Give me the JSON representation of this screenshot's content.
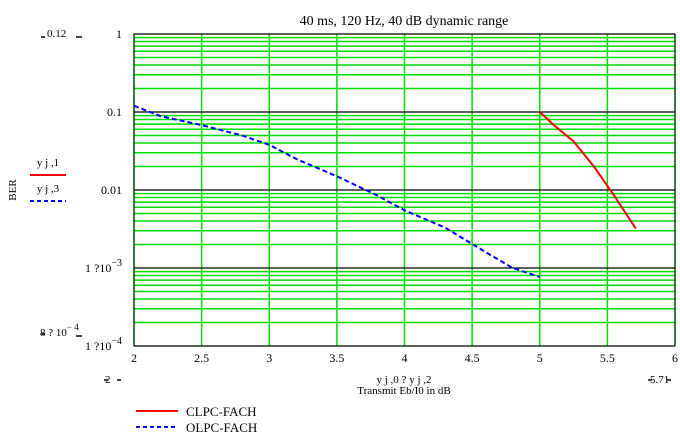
{
  "chart_data": {
    "type": "line",
    "title": "40 ms, 120 Hz, 40 dB dynamic range",
    "xlabel": "Transmit Eb/I0 in dB",
    "xlabel_expr": "y j ,0 ? y j ,2",
    "ylabel": "BER",
    "xlim": [
      2,
      6
    ],
    "ylim": [
      0.0001,
      1
    ],
    "yscale": "log",
    "grid": true,
    "grid_color": "#00dd00",
    "x_ticks": [
      "2",
      "2.5",
      "3",
      "3.5",
      "4",
      "4.5",
      "5",
      "5.5",
      "6"
    ],
    "y_ticks": [
      {
        "value": 1,
        "label": "1",
        "sup": ""
      },
      {
        "value": 0.1,
        "label": "0.1",
        "sup": ""
      },
      {
        "value": 0.01,
        "label": "0.01",
        "sup": ""
      },
      {
        "value": 0.001,
        "label": "1 ?10",
        "sup": "−3"
      },
      {
        "value": 0.0001,
        "label": "1 ?10",
        "sup": "−4"
      }
    ],
    "corner_annotations": {
      "y_max": "0.12",
      "y_min_base": "8 ? 10",
      "y_min_sup": "− 4",
      "x_min": "2",
      "x_max": "5.71"
    },
    "ylegend": [
      {
        "expr": "y j ,1",
        "color": "#ff0000",
        "dash": "solid"
      },
      {
        "expr": "y j ,3",
        "color": "#0000ff",
        "dash": "dash"
      }
    ],
    "series": [
      {
        "name": "CLPC-FACH",
        "color": "#ff0000",
        "dash": "solid",
        "x": [
          5.0,
          5.1,
          5.25,
          5.4,
          5.55,
          5.71
        ],
        "y": [
          0.1,
          0.069,
          0.042,
          0.02,
          0.0085,
          0.0032
        ]
      },
      {
        "name": "OLPC-FACH",
        "color": "#0000ff",
        "dash": "dash",
        "x": [
          2.0,
          2.2,
          2.5,
          2.8,
          3.0,
          3.2,
          3.5,
          3.8,
          4.0,
          4.3,
          4.6,
          4.8,
          5.0
        ],
        "y": [
          0.12,
          0.088,
          0.068,
          0.05,
          0.038,
          0.025,
          0.015,
          0.0085,
          0.0055,
          0.0033,
          0.0016,
          0.001,
          0.00077
        ]
      }
    ]
  }
}
